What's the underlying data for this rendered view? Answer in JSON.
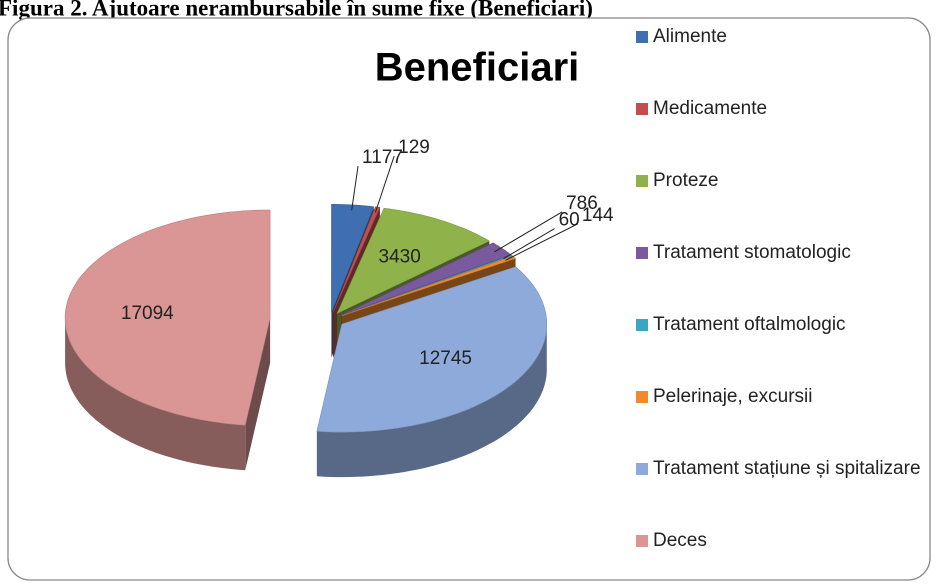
{
  "caption": "Figura 2. Ajutoare nerambursabile în sume fixe (Beneficiari)",
  "chart_data": {
    "type": "pie",
    "title": "Beneficiari",
    "categories": [
      "Alimente",
      "Medicamente",
      "Proteze",
      "Tratament stomatologic",
      "Tratament oftalmologic",
      "Pelerinaje, excursii",
      "Tratament stațiune și spitalizare",
      "Deces"
    ],
    "values": [
      1177,
      129,
      3430,
      786,
      60,
      144,
      12745,
      17094
    ],
    "colors": [
      "#3f6fb0",
      "#c0504d",
      "#8fb34a",
      "#7a5a9e",
      "#3aa7c2",
      "#f08a2e",
      "#8eaadb",
      "#d99694"
    ],
    "legend": "right"
  }
}
